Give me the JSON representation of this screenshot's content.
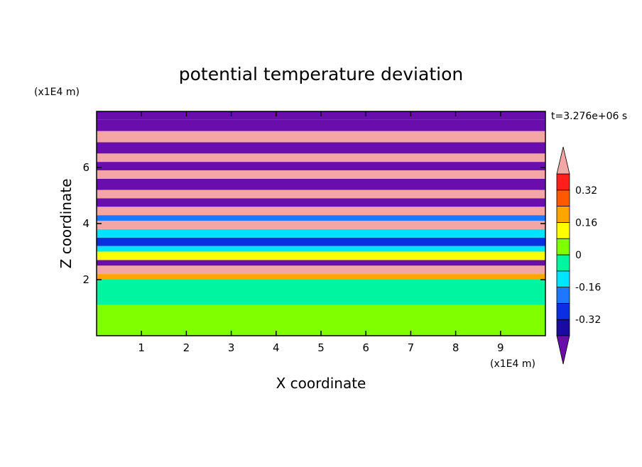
{
  "chart_data": {
    "type": "heatmap",
    "title": "potential temperature deviation",
    "time_label": "t=3.276e+06 s",
    "xlabel": "X coordinate",
    "ylabel": "Z coordinate",
    "x_unit": "(x1E4 m)",
    "y_unit": "(x1E4 m)",
    "xlim": [
      0,
      10
    ],
    "ylim": [
      0,
      8
    ],
    "x_ticks": [
      1,
      2,
      3,
      4,
      5,
      6,
      7,
      8,
      9
    ],
    "y_ticks": [
      2,
      4,
      6
    ],
    "colorbar": {
      "levels": [
        -0.4,
        -0.32,
        -0.24,
        -0.16,
        -0.08,
        0,
        0.08,
        0.16,
        0.24,
        0.32,
        0.4
      ],
      "tick_labels": [
        "0.32",
        "0.16",
        "0",
        "-0.16",
        "-0.32"
      ],
      "tick_values": [
        0.32,
        0.16,
        0,
        -0.16,
        -0.32
      ],
      "colors": [
        "#6a0dad",
        "#1a0aa0",
        "#0a2fe0",
        "#1e78ff",
        "#00e5ff",
        "#00f5a0",
        "#7fff00",
        "#ffff00",
        "#ffa500",
        "#ff5a00",
        "#ff1e1e",
        "#f4a6a6"
      ],
      "extend": "both"
    },
    "bands": [
      {
        "zmin": 0.0,
        "zmax": 1.1,
        "value": 0.02
      },
      {
        "zmin": 1.1,
        "zmax": 2.0,
        "value": -0.03
      },
      {
        "zmin": 2.0,
        "zmax": 2.2,
        "value": 0.2
      },
      {
        "zmin": 2.2,
        "zmax": 2.5,
        "value": 0.45
      },
      {
        "zmin": 2.5,
        "zmax": 2.7,
        "value": -0.45
      },
      {
        "zmin": 2.7,
        "zmax": 3.0,
        "value": 0.1
      },
      {
        "zmin": 3.0,
        "zmax": 3.2,
        "value": -0.1
      },
      {
        "zmin": 3.2,
        "zmax": 3.5,
        "value": -0.3
      },
      {
        "zmin": 3.5,
        "zmax": 3.8,
        "value": -0.15
      },
      {
        "zmin": 3.8,
        "zmax": 4.1,
        "value": 0.45
      },
      {
        "zmin": 4.1,
        "zmax": 4.3,
        "value": -0.2
      },
      {
        "zmin": 4.3,
        "zmax": 4.6,
        "value": 0.45
      },
      {
        "zmin": 4.6,
        "zmax": 4.9,
        "value": -0.45
      },
      {
        "zmin": 4.9,
        "zmax": 5.2,
        "value": 0.45
      },
      {
        "zmin": 5.2,
        "zmax": 5.6,
        "value": -0.45
      },
      {
        "zmin": 5.6,
        "zmax": 5.9,
        "value": 0.45
      },
      {
        "zmin": 5.9,
        "zmax": 6.2,
        "value": -0.45
      },
      {
        "zmin": 6.2,
        "zmax": 6.5,
        "value": 0.45
      },
      {
        "zmin": 6.5,
        "zmax": 6.9,
        "value": -0.45
      },
      {
        "zmin": 6.9,
        "zmax": 7.3,
        "value": 0.45
      },
      {
        "zmin": 7.3,
        "zmax": 7.7,
        "value": -0.45
      },
      {
        "zmin": 7.7,
        "zmax": 8.0,
        "value": -0.45
      }
    ]
  }
}
